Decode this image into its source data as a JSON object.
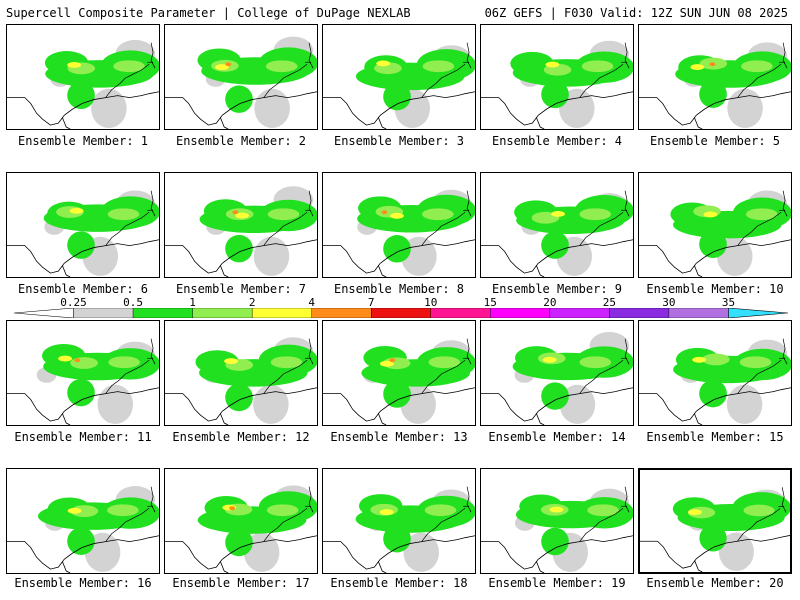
{
  "header": {
    "left": "Supercell Composite Parameter | College of DuPage NEXLAB",
    "right": "06Z GEFS | F030 Valid: 12Z SUN JUN 08 2025"
  },
  "legend": {
    "ticks": [
      "0.25",
      "0.5",
      "1",
      "2",
      "4",
      "7",
      "10",
      "15",
      "20",
      "25",
      "30",
      "35"
    ],
    "colors": [
      "#d3d3d3",
      "#20e020",
      "#90ee50",
      "#ffff33",
      "#ff8c1a",
      "#ee1111",
      "#ff1493",
      "#ff00ff",
      "#cc22ff",
      "#8a2be2",
      "#b070e0",
      "#33e0ff"
    ]
  },
  "panels": [
    {
      "label": "Ensemble Member: 1"
    },
    {
      "label": "Ensemble Member: 2"
    },
    {
      "label": "Ensemble Member: 3"
    },
    {
      "label": "Ensemble Member: 4"
    },
    {
      "label": "Ensemble Member: 5"
    },
    {
      "label": "Ensemble Member: 6"
    },
    {
      "label": "Ensemble Member: 7"
    },
    {
      "label": "Ensemble Member: 8"
    },
    {
      "label": "Ensemble Member: 9"
    },
    {
      "label": "Ensemble Member: 10"
    },
    {
      "label": "Ensemble Member: 11"
    },
    {
      "label": "Ensemble Member: 12"
    },
    {
      "label": "Ensemble Member: 13"
    },
    {
      "label": "Ensemble Member: 14"
    },
    {
      "label": "Ensemble Member: 15"
    },
    {
      "label": "Ensemble Member: 16"
    },
    {
      "label": "Ensemble Member: 17"
    },
    {
      "label": "Ensemble Member: 18"
    },
    {
      "label": "Ensemble Member: 19"
    },
    {
      "label": "Ensemble Member: 20"
    }
  ]
}
